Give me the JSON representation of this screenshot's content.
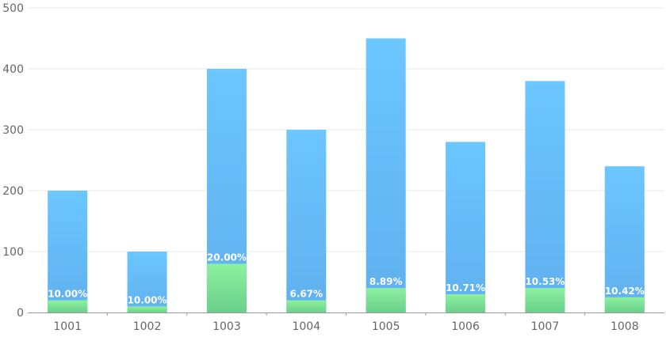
{
  "chart_data": {
    "type": "bar",
    "stacked": "overlay",
    "categories": [
      "1001",
      "1002",
      "1003",
      "1004",
      "1005",
      "1006",
      "1007",
      "1008"
    ],
    "series": [
      {
        "values": [
          200,
          100,
          400,
          300,
          450,
          280,
          380,
          240
        ]
      },
      {
        "values": [
          20,
          10,
          80,
          20,
          40,
          30,
          40,
          25
        ],
        "labels": [
          "10.00%",
          "10.00%",
          "20.00%",
          "6.67%",
          "8.89%",
          "10.71%",
          "10.53%",
          "10.42%"
        ]
      }
    ],
    "y_ticks": [
      "0",
      "100",
      "200",
      "300",
      "400",
      "500"
    ],
    "ylim": [
      0,
      500
    ],
    "grid": true,
    "colors": {
      "total_top": "#6cc6ff",
      "total_bottom": "#5fb0ee",
      "part_top": "#8ef0a0",
      "part_bottom": "#6ad08a",
      "grid": "#e8e8e8",
      "axis": "#9a9a9a"
    }
  }
}
